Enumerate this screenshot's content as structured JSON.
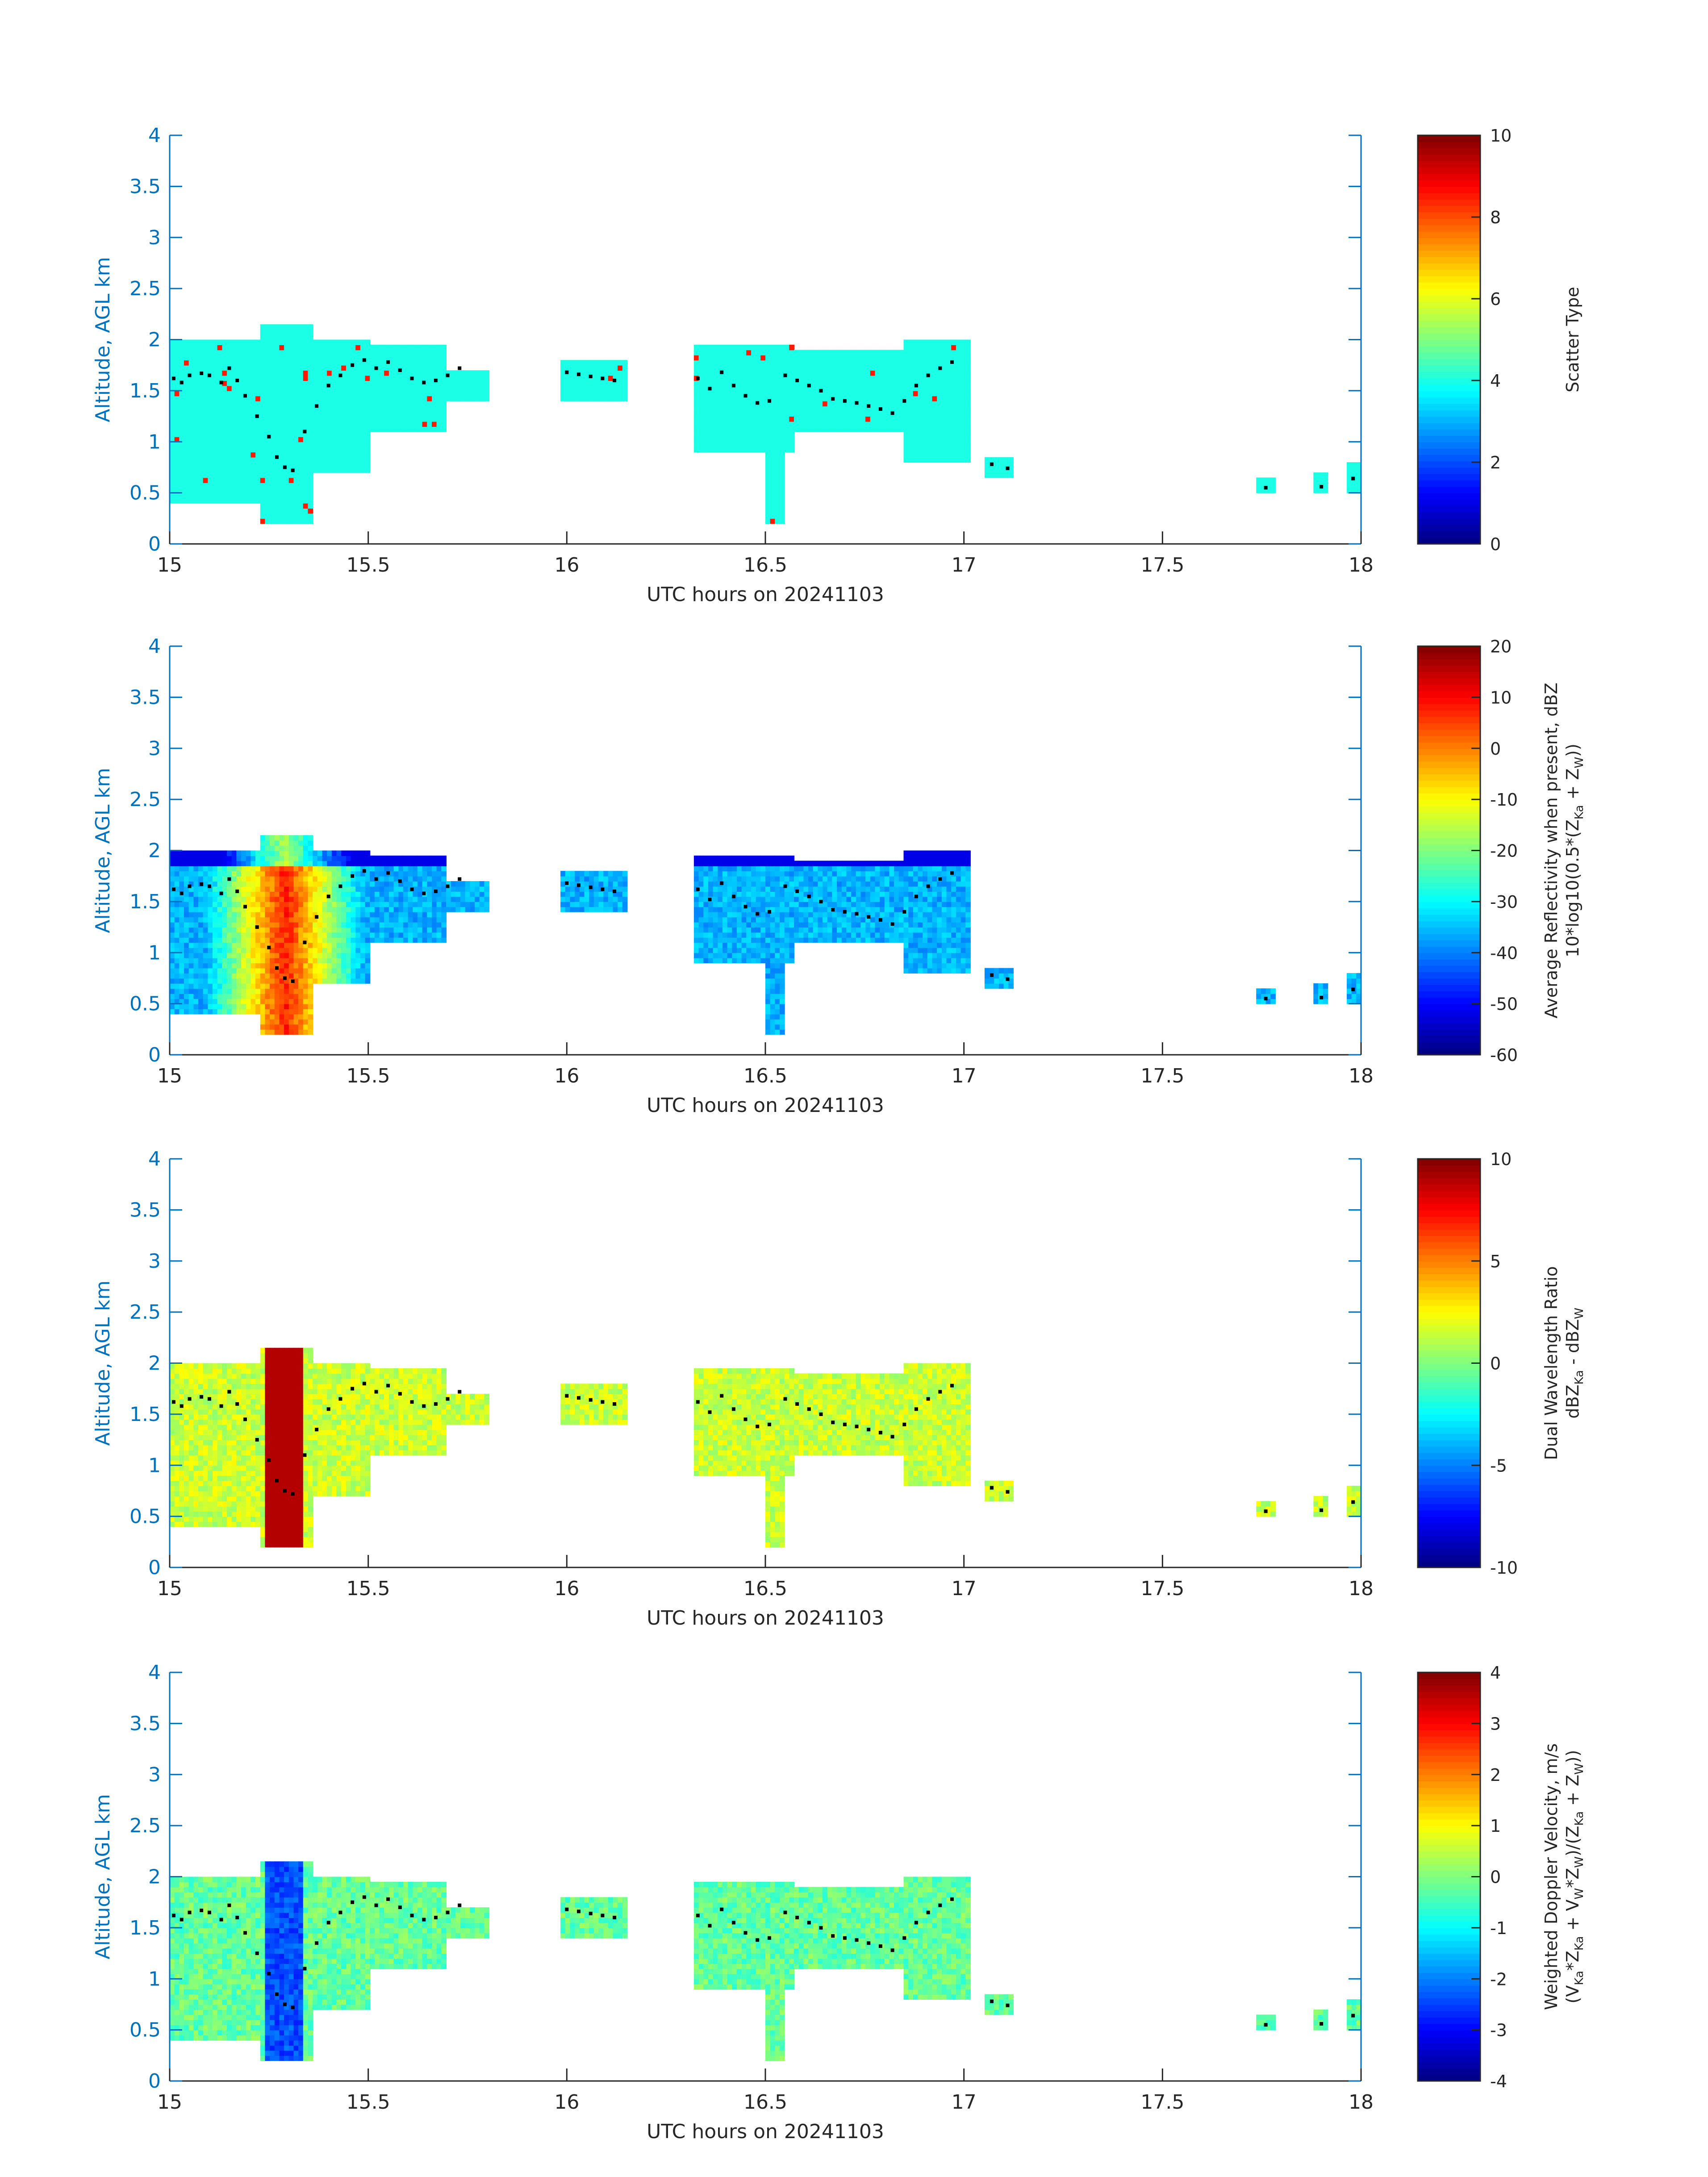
{
  "chart_data": [
    {
      "type": "heatmap",
      "xlabel": "UTC hours on 20241103",
      "ylabel": "Altitude, AGL km",
      "xlim": [
        15,
        18
      ],
      "ylim": [
        0,
        4
      ],
      "xticks": [
        "15",
        "15.5",
        "16",
        "16.5",
        "17",
        "17.5",
        "18"
      ],
      "yticks": [
        "0",
        "0.5",
        "1",
        "1.5",
        "2",
        "2.5",
        "3",
        "3.5",
        "4"
      ],
      "colorbar": {
        "label_lines": [
          {
            "text": "Scatter Type"
          }
        ],
        "range": [
          0,
          10
        ],
        "ticks": [
          "0",
          "2",
          "4",
          "6",
          "8",
          "10"
        ]
      },
      "colormap": "jet"
    },
    {
      "type": "heatmap",
      "xlabel": "UTC hours on 20241103",
      "ylabel": "Altitude, AGL km",
      "xlim": [
        15,
        18
      ],
      "ylim": [
        0,
        4
      ],
      "xticks": [
        "15",
        "15.5",
        "16",
        "16.5",
        "17",
        "17.5",
        "18"
      ],
      "yticks": [
        "0",
        "0.5",
        "1",
        "1.5",
        "2",
        "2.5",
        "3",
        "3.5",
        "4"
      ],
      "colorbar": {
        "label_lines": [
          {
            "text": "Average Reflectivity when present, dBZ"
          },
          {
            "text": "10*log10(0.5*(Z",
            "sub": [
              {
                "s": "Ka",
                "after": " + Z"
              },
              {
                "s": "W",
                "after": "))"
              }
            ]
          }
        ],
        "range": [
          -60,
          20
        ],
        "ticks": [
          "-60",
          "-50",
          "-40",
          "-30",
          "-20",
          "-10",
          "0",
          "10",
          "20"
        ]
      },
      "colormap": "jet"
    },
    {
      "type": "heatmap",
      "xlabel": "UTC hours on 20241103",
      "ylabel": "Altitude, AGL km",
      "xlim": [
        15,
        18
      ],
      "ylim": [
        0,
        4
      ],
      "xticks": [
        "15",
        "15.5",
        "16",
        "16.5",
        "17",
        "17.5",
        "18"
      ],
      "yticks": [
        "0",
        "0.5",
        "1",
        "1.5",
        "2",
        "2.5",
        "3",
        "3.5",
        "4"
      ],
      "colorbar": {
        "label_lines": [
          {
            "text": "Dual Wavelength Ratio"
          },
          {
            "text": "dBZ",
            "sub": [
              {
                "s": "Ka",
                "after": " - dBZ"
              },
              {
                "s": "W",
                "after": ""
              }
            ]
          }
        ],
        "range": [
          -10,
          10
        ],
        "ticks": [
          "-10",
          "-5",
          "0",
          "5",
          "10"
        ]
      },
      "colormap": "jet"
    },
    {
      "type": "heatmap",
      "xlabel": "UTC hours on 20241103",
      "ylabel": "Altitude, AGL km",
      "xlim": [
        15,
        18
      ],
      "ylim": [
        0,
        4
      ],
      "xticks": [
        "15",
        "15.5",
        "16",
        "16.5",
        "17",
        "17.5",
        "18"
      ],
      "yticks": [
        "0",
        "0.5",
        "1",
        "1.5",
        "2",
        "2.5",
        "3",
        "3.5",
        "4"
      ],
      "colorbar": {
        "label_lines": [
          {
            "text": "Weighted Doppler Velocity, m/s"
          },
          {
            "text": "(V",
            "sub": [
              {
                "s": "Ka",
                "after": "*Z"
              },
              {
                "s": "Ka",
                "after": " + V"
              },
              {
                "s": "W",
                "after": "*Z"
              },
              {
                "s": "W",
                "after": ")/(Z"
              },
              {
                "s": "Ka",
                "after": " + Z"
              },
              {
                "s": "W",
                "after": "))"
              }
            ]
          }
        ],
        "range": [
          -4,
          4
        ],
        "ticks": [
          "-4",
          "-3",
          "-2",
          "-1",
          "0",
          "1",
          "2",
          "3",
          "4"
        ]
      },
      "colormap": "jet"
    }
  ],
  "cloud_top_blocks": [
    {
      "t0": 15.0,
      "t1": 15.23,
      "top": 2.0,
      "bottom": 0.4
    },
    {
      "t0": 15.23,
      "t1": 15.36,
      "top": 2.15,
      "bottom": 0.2
    },
    {
      "t0": 15.36,
      "t1": 15.5,
      "top": 2.0,
      "bottom": 0.7
    },
    {
      "t0": 15.5,
      "t1": 15.7,
      "top": 1.95,
      "bottom": 1.1
    },
    {
      "t0": 15.7,
      "t1": 15.8,
      "top": 1.7,
      "bottom": 1.4
    },
    {
      "t0": 15.98,
      "t1": 16.15,
      "top": 1.8,
      "bottom": 1.4
    },
    {
      "t0": 16.32,
      "t1": 16.57,
      "top": 1.95,
      "bottom": 0.9
    },
    {
      "t0": 16.5,
      "t1": 16.55,
      "top": 1.4,
      "bottom": 0.2
    },
    {
      "t0": 16.57,
      "t1": 16.85,
      "top": 1.9,
      "bottom": 1.1
    },
    {
      "t0": 16.85,
      "t1": 17.02,
      "top": 2.0,
      "bottom": 0.8
    },
    {
      "t0": 17.05,
      "t1": 17.13,
      "top": 0.85,
      "bottom": 0.65
    },
    {
      "t0": 17.74,
      "t1": 17.78,
      "top": 0.65,
      "bottom": 0.5
    },
    {
      "t0": 17.88,
      "t1": 17.92,
      "top": 0.7,
      "bottom": 0.5
    },
    {
      "t0": 17.97,
      "t1": 18.0,
      "top": 0.78,
      "bottom": 0.5
    }
  ],
  "melting_layer_dots": [
    [
      15.01,
      1.62
    ],
    [
      15.03,
      1.58
    ],
    [
      15.05,
      1.65
    ],
    [
      15.08,
      1.67
    ],
    [
      15.1,
      1.65
    ],
    [
      15.13,
      1.58
    ],
    [
      15.15,
      1.72
    ],
    [
      15.17,
      1.6
    ],
    [
      15.19,
      1.45
    ],
    [
      15.22,
      1.25
    ],
    [
      15.25,
      1.05
    ],
    [
      15.27,
      0.85
    ],
    [
      15.29,
      0.75
    ],
    [
      15.31,
      0.72
    ],
    [
      15.34,
      1.1
    ],
    [
      15.37,
      1.35
    ],
    [
      15.4,
      1.55
    ],
    [
      15.43,
      1.65
    ],
    [
      15.46,
      1.75
    ],
    [
      15.49,
      1.8
    ],
    [
      15.52,
      1.72
    ],
    [
      15.55,
      1.78
    ],
    [
      15.58,
      1.7
    ],
    [
      15.61,
      1.62
    ],
    [
      15.64,
      1.58
    ],
    [
      15.67,
      1.6
    ],
    [
      15.7,
      1.65
    ],
    [
      15.73,
      1.72
    ],
    [
      16.0,
      1.68
    ],
    [
      16.03,
      1.66
    ],
    [
      16.06,
      1.64
    ],
    [
      16.09,
      1.62
    ],
    [
      16.12,
      1.6
    ],
    [
      16.33,
      1.62
    ],
    [
      16.36,
      1.52
    ],
    [
      16.39,
      1.68
    ],
    [
      16.42,
      1.55
    ],
    [
      16.45,
      1.45
    ],
    [
      16.48,
      1.38
    ],
    [
      16.51,
      1.4
    ],
    [
      16.55,
      1.65
    ],
    [
      16.58,
      1.6
    ],
    [
      16.61,
      1.55
    ],
    [
      16.64,
      1.5
    ],
    [
      16.67,
      1.42
    ],
    [
      16.7,
      1.4
    ],
    [
      16.73,
      1.38
    ],
    [
      16.76,
      1.35
    ],
    [
      16.79,
      1.32
    ],
    [
      16.82,
      1.28
    ],
    [
      16.85,
      1.4
    ],
    [
      16.88,
      1.55
    ],
    [
      16.91,
      1.65
    ],
    [
      16.94,
      1.72
    ],
    [
      16.97,
      1.78
    ],
    [
      17.07,
      0.78
    ],
    [
      17.11,
      0.74
    ],
    [
      17.76,
      0.55
    ],
    [
      17.9,
      0.56
    ],
    [
      17.98,
      0.64
    ]
  ]
}
